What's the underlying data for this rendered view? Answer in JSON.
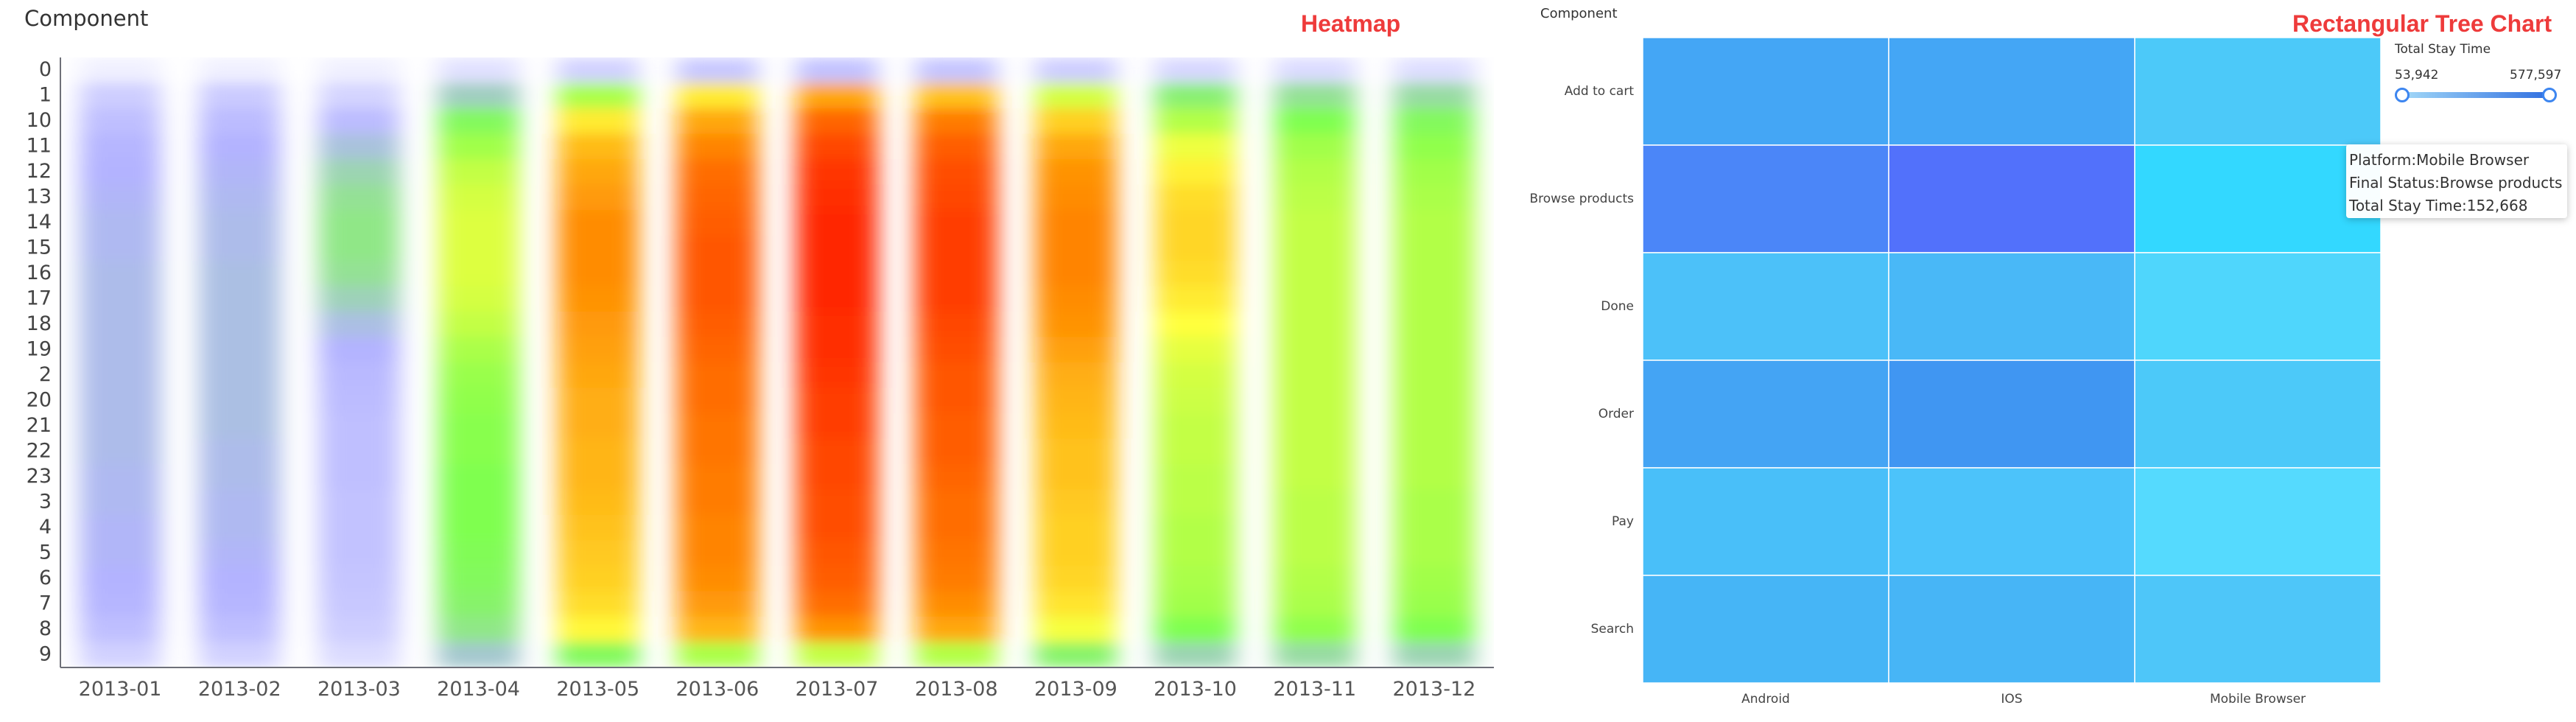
{
  "heatmap": {
    "component_label": "Component",
    "title": "Heatmap",
    "title_color": "#ee3b3b",
    "chart_data": {
      "type": "heatmap",
      "title": "Heatmap",
      "x_categories": [
        "2013-01",
        "2013-02",
        "2013-03",
        "2013-04",
        "2013-05",
        "2013-06",
        "2013-07",
        "2013-08",
        "2013-09",
        "2013-10",
        "2013-11",
        "2013-12"
      ],
      "y_categories": [
        "0",
        "1",
        "10",
        "11",
        "12",
        "13",
        "14",
        "15",
        "16",
        "17",
        "18",
        "19",
        "2",
        "20",
        "21",
        "22",
        "23",
        "3",
        "4",
        "5",
        "6",
        "7",
        "8",
        "9"
      ],
      "color_scale": [
        "#ffffff",
        "#b3b3ff",
        "#7fff4f",
        "#ffff3c",
        "#ff8c00",
        "#ff0000"
      ],
      "value_range": [
        0,
        1
      ],
      "intensity": [
        [
          0.05,
          0.16,
          0.21,
          0.24,
          0.25,
          0.26,
          0.27,
          0.27,
          0.28,
          0.28,
          0.28,
          0.28,
          0.28,
          0.28,
          0.28,
          0.28,
          0.27,
          0.27,
          0.26,
          0.26,
          0.25,
          0.24,
          0.21,
          0.15
        ],
        [
          0.05,
          0.17,
          0.22,
          0.25,
          0.26,
          0.27,
          0.28,
          0.28,
          0.29,
          0.29,
          0.29,
          0.29,
          0.29,
          0.29,
          0.29,
          0.28,
          0.28,
          0.27,
          0.27,
          0.26,
          0.25,
          0.24,
          0.21,
          0.15
        ],
        [
          0.05,
          0.14,
          0.22,
          0.3,
          0.36,
          0.4,
          0.42,
          0.42,
          0.4,
          0.35,
          0.29,
          0.25,
          0.23,
          0.22,
          0.21,
          0.21,
          0.21,
          0.2,
          0.2,
          0.2,
          0.19,
          0.18,
          0.16,
          0.12
        ],
        [
          0.1,
          0.34,
          0.48,
          0.54,
          0.58,
          0.6,
          0.61,
          0.61,
          0.61,
          0.6,
          0.58,
          0.55,
          0.53,
          0.52,
          0.51,
          0.51,
          0.5,
          0.5,
          0.5,
          0.49,
          0.48,
          0.46,
          0.42,
          0.32
        ],
        [
          0.15,
          0.55,
          0.68,
          0.75,
          0.78,
          0.8,
          0.82,
          0.82,
          0.82,
          0.81,
          0.8,
          0.79,
          0.78,
          0.77,
          0.77,
          0.76,
          0.76,
          0.75,
          0.74,
          0.73,
          0.72,
          0.7,
          0.66,
          0.48
        ],
        [
          0.18,
          0.68,
          0.78,
          0.83,
          0.86,
          0.87,
          0.88,
          0.89,
          0.89,
          0.89,
          0.88,
          0.87,
          0.86,
          0.86,
          0.85,
          0.85,
          0.84,
          0.84,
          0.83,
          0.83,
          0.82,
          0.8,
          0.76,
          0.55
        ],
        [
          0.2,
          0.78,
          0.87,
          0.91,
          0.93,
          0.94,
          0.95,
          0.95,
          0.95,
          0.95,
          0.94,
          0.94,
          0.93,
          0.92,
          0.92,
          0.91,
          0.91,
          0.9,
          0.9,
          0.89,
          0.88,
          0.86,
          0.81,
          0.58
        ],
        [
          0.19,
          0.74,
          0.84,
          0.88,
          0.9,
          0.91,
          0.92,
          0.92,
          0.92,
          0.92,
          0.91,
          0.9,
          0.89,
          0.89,
          0.88,
          0.88,
          0.87,
          0.86,
          0.86,
          0.85,
          0.84,
          0.82,
          0.78,
          0.56
        ],
        [
          0.16,
          0.6,
          0.72,
          0.78,
          0.81,
          0.82,
          0.83,
          0.83,
          0.83,
          0.82,
          0.81,
          0.79,
          0.77,
          0.76,
          0.75,
          0.74,
          0.74,
          0.73,
          0.72,
          0.72,
          0.71,
          0.69,
          0.64,
          0.46
        ],
        [
          0.13,
          0.45,
          0.56,
          0.63,
          0.67,
          0.7,
          0.71,
          0.71,
          0.7,
          0.68,
          0.65,
          0.62,
          0.6,
          0.59,
          0.58,
          0.58,
          0.57,
          0.57,
          0.56,
          0.56,
          0.55,
          0.54,
          0.5,
          0.36
        ],
        [
          0.12,
          0.4,
          0.5,
          0.54,
          0.56,
          0.57,
          0.58,
          0.58,
          0.58,
          0.58,
          0.58,
          0.58,
          0.58,
          0.58,
          0.58,
          0.58,
          0.58,
          0.57,
          0.57,
          0.57,
          0.56,
          0.55,
          0.52,
          0.38
        ],
        [
          0.11,
          0.38,
          0.48,
          0.52,
          0.54,
          0.55,
          0.56,
          0.56,
          0.56,
          0.56,
          0.56,
          0.56,
          0.56,
          0.56,
          0.56,
          0.56,
          0.56,
          0.55,
          0.55,
          0.55,
          0.54,
          0.53,
          0.5,
          0.36
        ]
      ]
    }
  },
  "treemap": {
    "component_label": "Component",
    "title": "Rectangular Tree Chart",
    "title_color": "#ee3b3b",
    "chart_data": {
      "type": "heatmap",
      "title": "Rectangular Tree Chart",
      "x_categories": [
        "Android",
        "IOS",
        "Mobile Browser"
      ],
      "y_categories": [
        "Add to cart",
        "Browse products",
        "Done",
        "Order",
        "Pay",
        "Search"
      ],
      "cell_colors": [
        [
          "#44a6f5",
          "#44a6f5",
          "#4cc9f9"
        ],
        [
          "#4b86f8",
          "#5271fb",
          "#33d8ff"
        ],
        [
          "#4cc1f9",
          "#49b8f7",
          "#4fd6fc"
        ],
        [
          "#44a4f4",
          "#4096f2",
          "#4cc9f9"
        ],
        [
          "#49bff9",
          "#4cc3fa",
          "#55dafe"
        ],
        [
          "#46b5f6",
          "#47b5f6",
          "#4ec6f9"
        ]
      ],
      "tooltip": {
        "line1": "Platform:Mobile Browser",
        "line2": "Final Status:Browse products",
        "line3": "Total Stay Time:152,668"
      },
      "visual_map": {
        "title": "Total Stay Time",
        "min_label": "53,942",
        "max_label": "577,597",
        "range": [
          53942,
          577597
        ]
      }
    }
  }
}
